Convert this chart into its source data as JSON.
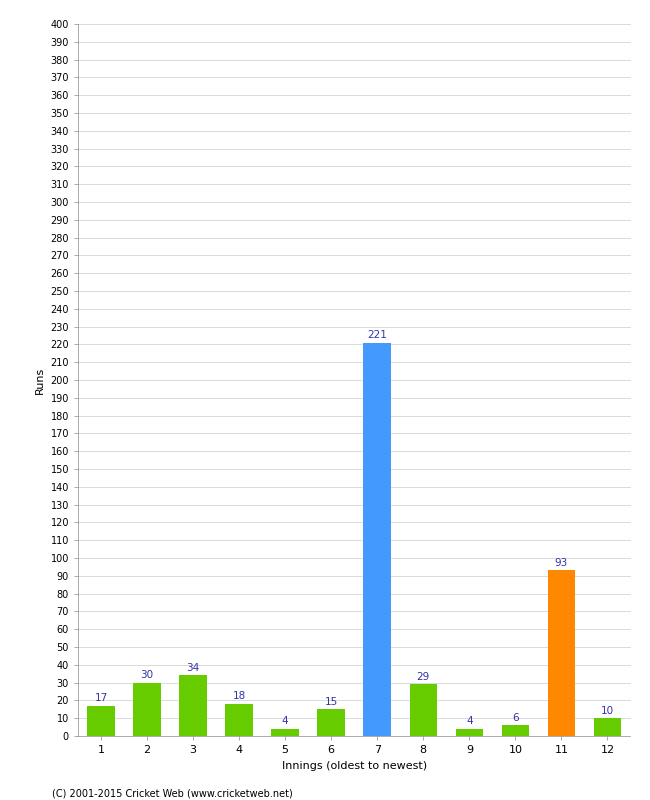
{
  "innings": [
    1,
    2,
    3,
    4,
    5,
    6,
    7,
    8,
    9,
    10,
    11,
    12
  ],
  "runs": [
    17,
    30,
    34,
    18,
    4,
    15,
    221,
    29,
    4,
    6,
    93,
    10
  ],
  "colors": [
    "#66cc00",
    "#66cc00",
    "#66cc00",
    "#66cc00",
    "#66cc00",
    "#66cc00",
    "#4499ff",
    "#66cc00",
    "#66cc00",
    "#66cc00",
    "#ff8800",
    "#66cc00"
  ],
  "ylabel": "Runs",
  "xlabel": "Innings (oldest to newest)",
  "ylim": [
    0,
    400
  ],
  "background_color": "#ffffff",
  "grid_color": "#cccccc",
  "label_color": "#3333aa",
  "footer": "(C) 2001-2015 Cricket Web (www.cricketweb.net)"
}
